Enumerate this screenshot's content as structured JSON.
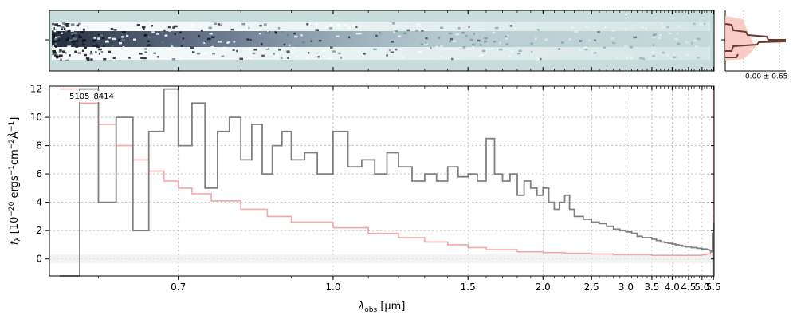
{
  "chart_data": {
    "type": "line",
    "object_label": "5105_8414",
    "ylabel": "f_λ [10^-20 ergs^-1 cm^-2 Å^-1]",
    "ylabel_parts": {
      "f": "f",
      "sub": "λ",
      "pre": " [10",
      "exp1": "−20",
      "mid": " ergs",
      "exp2": "−1",
      "mid2": "cm",
      "exp3": "−2",
      "unit": "Å",
      "exp4": "−1",
      "close": "]"
    },
    "xlabel": "λ_obs [μm]",
    "xlabel_parts": {
      "lambda": "λ",
      "sub": "obs",
      "unit": " [μm]"
    },
    "x_scale": "power-law (compressed toward long wavelengths)",
    "xlim": [
      0.55,
      5.53
    ],
    "ylim": [
      -1.2,
      12.2
    ],
    "x_ticks": [
      0.7,
      1.0,
      1.5,
      2.0,
      2.5,
      3.0,
      3.5,
      4.0,
      4.5,
      5.0,
      5.5
    ],
    "x_tick_labels": [
      "0.7",
      "1.0",
      "1.5",
      "2.0",
      "2.5",
      "3.0",
      "3.5",
      "4.0",
      "4.5",
      "5.0",
      "5.5"
    ],
    "y_ticks": [
      0,
      2,
      4,
      6,
      8,
      10,
      12
    ],
    "y_tick_labels": [
      "0",
      "2",
      "4",
      "6",
      "8",
      "10",
      "12"
    ],
    "grid": true,
    "series": [
      {
        "role": "flux",
        "color": "#808080",
        "x": [
          0.56,
          0.58,
          0.6,
          0.62,
          0.64,
          0.66,
          0.68,
          0.7,
          0.72,
          0.74,
          0.76,
          0.78,
          0.8,
          0.82,
          0.84,
          0.86,
          0.88,
          0.9,
          0.93,
          0.96,
          1.0,
          1.04,
          1.08,
          1.12,
          1.16,
          1.2,
          1.25,
          1.3,
          1.35,
          1.4,
          1.45,
          1.5,
          1.55,
          1.6,
          1.65,
          1.7,
          1.75,
          1.8,
          1.85,
          1.9,
          1.95,
          2.0,
          2.05,
          2.1,
          2.15,
          2.2,
          2.25,
          2.3,
          2.4,
          2.5,
          2.6,
          2.7,
          2.8,
          2.9,
          3.0,
          3.1,
          3.2,
          3.3,
          3.4,
          3.5,
          3.6,
          3.7,
          3.8,
          3.9,
          4.0,
          4.1,
          4.2,
          4.3,
          4.4,
          4.5,
          4.6,
          4.7,
          4.8,
          4.9,
          5.0,
          5.1,
          5.2,
          5.3,
          5.4,
          5.45,
          5.48,
          5.5,
          5.52
        ],
        "y": [
          -1.2,
          12,
          4,
          10,
          2,
          9,
          12,
          8,
          11,
          5,
          9,
          10,
          7,
          9.5,
          6,
          8,
          9,
          7,
          7.5,
          6,
          9,
          6.5,
          7,
          6,
          7.5,
          6.5,
          5.5,
          6,
          5.5,
          6.5,
          5.8,
          6,
          5.5,
          8.5,
          6,
          5.5,
          6,
          4.5,
          5.5,
          5,
          4.5,
          5,
          4,
          3.5,
          4,
          4.5,
          3.5,
          3,
          2.8,
          2.6,
          2.5,
          2.3,
          2.1,
          2,
          1.9,
          1.8,
          1.6,
          1.5,
          1.5,
          1.4,
          1.3,
          1.2,
          1.15,
          1.1,
          1.05,
          1.0,
          0.95,
          0.9,
          0.85,
          0.85,
          0.8,
          0.8,
          0.75,
          0.75,
          0.7,
          0.7,
          0.65,
          0.6,
          0.5,
          1.8,
          -1.2,
          2.5,
          2.0
        ]
      },
      {
        "role": "uncertainty",
        "color": "#f4a6a6",
        "x": [
          0.56,
          0.58,
          0.6,
          0.62,
          0.64,
          0.66,
          0.68,
          0.7,
          0.72,
          0.75,
          0.8,
          0.85,
          0.9,
          1.0,
          1.1,
          1.2,
          1.3,
          1.4,
          1.5,
          1.6,
          1.8,
          2.0,
          2.2,
          2.5,
          2.8,
          3.0,
          3.5,
          4.0,
          4.5,
          5.0,
          5.2,
          5.35,
          5.45,
          5.5,
          5.52
        ],
        "y": [
          12,
          11,
          9.5,
          8,
          7,
          6.2,
          5.5,
          5,
          4.6,
          4.1,
          3.5,
          3,
          2.6,
          2.2,
          1.8,
          1.5,
          1.2,
          1.0,
          0.8,
          0.65,
          0.5,
          0.45,
          0.4,
          0.35,
          0.3,
          0.3,
          0.25,
          0.25,
          0.25,
          0.3,
          0.35,
          0.5,
          0.9,
          3,
          12
        ]
      }
    ]
  },
  "spectrum_2d": {
    "background_color": "#c8dcdc",
    "trace_color": "#2a3550"
  },
  "profile_panel": {
    "label": "0.00 ± 0.65",
    "profile_color": "#6b3a2a",
    "fill_color": "#f8c8c0"
  }
}
